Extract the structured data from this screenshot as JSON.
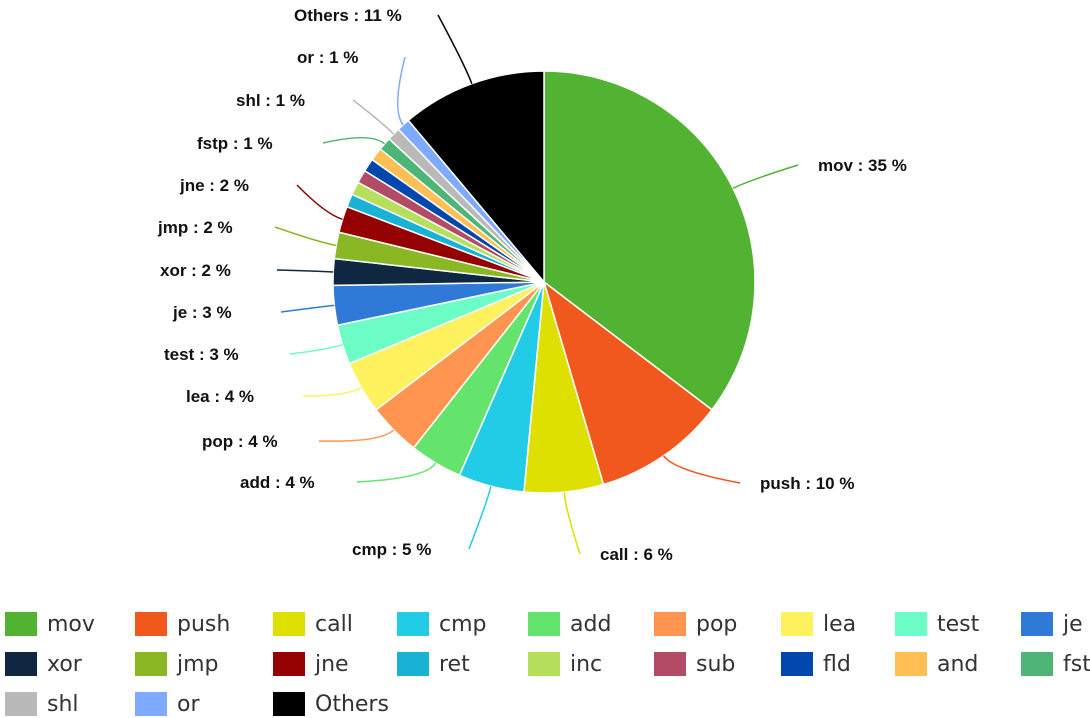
{
  "chart_data": {
    "type": "pie",
    "title": "",
    "unit": "%",
    "slices": [
      {
        "name": "mov",
        "value": 35,
        "color": "#52b332",
        "show_label": true
      },
      {
        "name": "push",
        "value": 10,
        "color": "#f0581e",
        "show_label": true
      },
      {
        "name": "call",
        "value": 6,
        "color": "#dde000",
        "show_label": true
      },
      {
        "name": "cmp",
        "value": 5,
        "color": "#22cbe6",
        "show_label": true
      },
      {
        "name": "add",
        "value": 4,
        "color": "#64e46c",
        "show_label": true
      },
      {
        "name": "pop",
        "value": 4,
        "color": "#ff9550",
        "show_label": true
      },
      {
        "name": "lea",
        "value": 4,
        "color": "#fff25e",
        "show_label": true
      },
      {
        "name": "test",
        "value": 3,
        "color": "#6cfcc6",
        "show_label": true
      },
      {
        "name": "je",
        "value": 3,
        "color": "#2f7ad6",
        "show_label": true
      },
      {
        "name": "xor",
        "value": 2,
        "color": "#0f2740",
        "show_label": true
      },
      {
        "name": "jmp",
        "value": 2,
        "color": "#8ab824",
        "show_label": true
      },
      {
        "name": "jne",
        "value": 2,
        "color": "#950000",
        "show_label": true
      },
      {
        "name": "ret",
        "value": 1,
        "color": "#1ab2d4",
        "show_label": false
      },
      {
        "name": "inc",
        "value": 1,
        "color": "#b6e05c",
        "show_label": false
      },
      {
        "name": "sub",
        "value": 1,
        "color": "#b24c66",
        "show_label": false
      },
      {
        "name": "fld",
        "value": 1,
        "color": "#0048ad",
        "show_label": false
      },
      {
        "name": "and",
        "value": 1,
        "color": "#ffbf55",
        "show_label": false
      },
      {
        "name": "fstp",
        "value": 1,
        "color": "#4db676",
        "show_label": true
      },
      {
        "name": "shl",
        "value": 1,
        "color": "#b9b9b9",
        "show_label": true
      },
      {
        "name": "or",
        "value": 1,
        "color": "#7eaaff",
        "show_label": true
      },
      {
        "name": "Others",
        "value": 11,
        "color": "#000000",
        "show_label": true
      }
    ],
    "legend_position": "bottom"
  }
}
